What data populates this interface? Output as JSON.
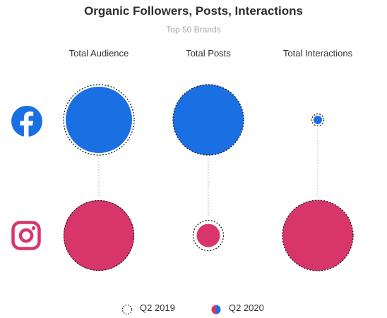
{
  "chart_data": {
    "type": "bubble",
    "title": "Organic Followers, Posts, Interactions",
    "subtitle": "Top 50 Brands",
    "metrics": [
      "Total Audience",
      "Total Posts",
      "Total Interactions"
    ],
    "platforms": [
      {
        "name": "Facebook",
        "icon": "facebook-icon",
        "color": "#1a6fe3"
      },
      {
        "name": "Instagram",
        "icon": "instagram-icon",
        "color": "#d8366b"
      }
    ],
    "series": [
      {
        "name": "Q2 2019",
        "style": "dotted-outline",
        "values": {
          "Facebook": [
            1.0,
            1.0,
            0.17
          ],
          "Instagram": [
            0.99,
            0.43,
            1.0
          ]
        }
      },
      {
        "name": "Q2 2020",
        "style": "filled",
        "values": {
          "Facebook": [
            0.94,
            1.0,
            0.12
          ],
          "Instagram": [
            1.0,
            0.33,
            1.0
          ]
        }
      }
    ],
    "value_note_unit": "relative bubble size"
  },
  "legend": {
    "q2_2019": "Q2 2019",
    "q2_2020": "Q2 2020"
  }
}
